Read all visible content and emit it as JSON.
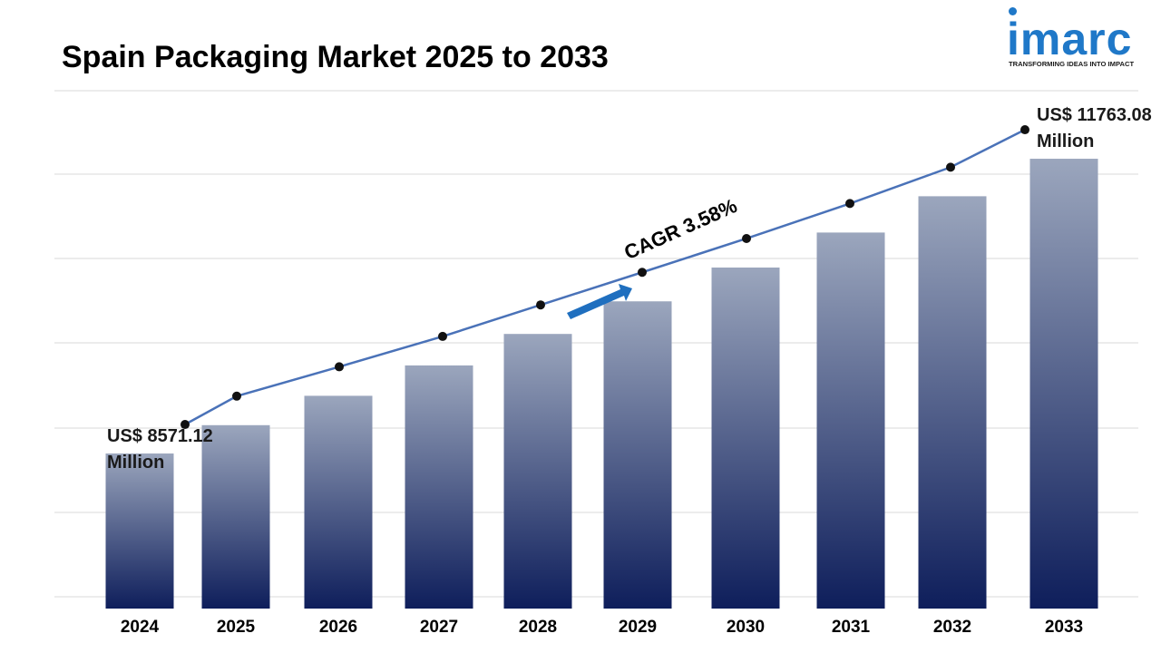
{
  "title": "Spain Packaging Market 2025 to 2033",
  "logo": {
    "word": "imarc",
    "tagline": "TRANSFORMING IDEAS INTO IMPACT",
    "color": "#1f78c8",
    "dot_color": "#1f78c8"
  },
  "colors": {
    "bar_top": "#9ba6bd",
    "bar_bottom": "#0e1e5b",
    "line": "#4a72b8",
    "marker": "#111111",
    "grid": "#d9d9d9",
    "arrow": "#1f6fbf"
  },
  "annotations": {
    "start_line1": "US$ 8571.12",
    "start_line2": "Million",
    "end_line1": "US$ 11763.08",
    "end_line2": "Million",
    "cagr": "CAGR 3.58%"
  },
  "chart_data": {
    "type": "bar",
    "title": "Spain Packaging Market 2025 to 2033",
    "xlabel": "",
    "ylabel": "",
    "categories": [
      "2024",
      "2025",
      "2026",
      "2027",
      "2028",
      "2029",
      "2030",
      "2031",
      "2032",
      "2033"
    ],
    "series": [
      {
        "values": [
          8571.12,
          8878,
          9196,
          9525,
          9866,
          10219,
          10585,
          10964,
          11357,
          11763.08
        ]
      }
    ],
    "line_overlay": true,
    "grid": true,
    "ylim": [
      7000,
      12500
    ]
  }
}
